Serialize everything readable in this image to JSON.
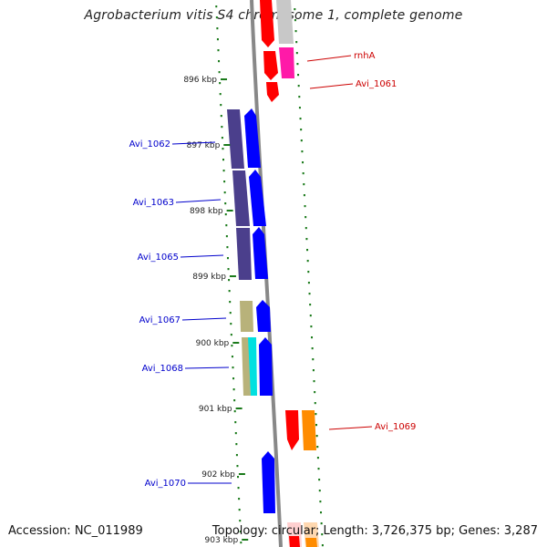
{
  "title": "Agrobacterium vitis S4 chromosome 1, complete genome",
  "footer": {
    "accession": "Accession: NC_011989",
    "summary": "Topology: circular; Length: 3,726,375 bp; Genes: 3,287"
  },
  "scale_ticks": [
    {
      "label": "896 kbp"
    },
    {
      "label": "897 kbp"
    },
    {
      "label": "898 kbp"
    },
    {
      "label": "899 kbp"
    },
    {
      "label": "900 kbp"
    },
    {
      "label": "901 kbp"
    },
    {
      "label": "902 kbp"
    },
    {
      "label": "903 kbp"
    }
  ],
  "gene_labels": [
    {
      "label": "rnhA",
      "strand": "forward",
      "color": "#cc0000"
    },
    {
      "label": "Avi_1061",
      "strand": "forward",
      "color": "#cc0000"
    },
    {
      "label": "Avi_1062",
      "strand": "reverse",
      "color": "#0000cc"
    },
    {
      "label": "Avi_1063",
      "strand": "reverse",
      "color": "#0000cc"
    },
    {
      "label": "Avi_1065",
      "strand": "reverse",
      "color": "#0000cc"
    },
    {
      "label": "Avi_1067",
      "strand": "reverse",
      "color": "#0000cc"
    },
    {
      "label": "Avi_1068",
      "strand": "reverse",
      "color": "#0000cc"
    },
    {
      "label": "Avi_1069",
      "strand": "forward",
      "color": "#cc0000"
    },
    {
      "label": "Avi_1070",
      "strand": "reverse",
      "color": "#0000cc"
    }
  ],
  "colors": {
    "forward_cds": "#ff0000",
    "reverse_cds": "#0000ff",
    "backbone": "#888888",
    "gc_skew": "#1a7a1a",
    "cog_purple": "#4b3f8c",
    "cog_khaki": "#b8b27a",
    "cog_cyan": "#00e0e0",
    "cog_orange": "#ff8c00",
    "cog_magenta": "#ff1aa8",
    "cog_grey": "#c8c8c8"
  }
}
